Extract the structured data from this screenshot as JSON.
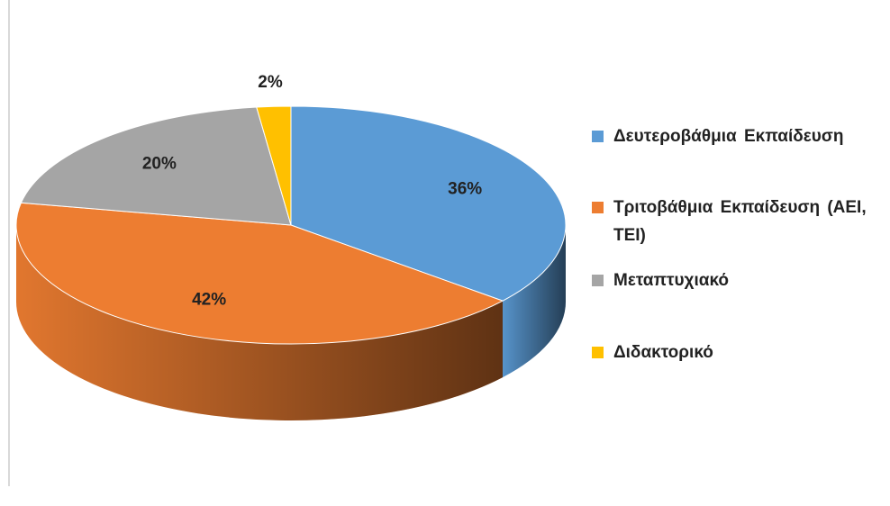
{
  "chart_data": {
    "type": "pie3d",
    "categories": [
      "Δευτεροβάθμια Εκπαίδευση",
      "Τριτοβάθμια Εκπαίδευση (ΑΕΙ, ΤΕΙ)",
      "Μεταπτυχιακό",
      "Διδακτορικό"
    ],
    "values": [
      36,
      42,
      20,
      2
    ],
    "value_labels": [
      "36%",
      "42%",
      "20%",
      "2%"
    ],
    "colors": [
      "#5b9bd5",
      "#ed7d31",
      "#a5a5a5",
      "#ffc000"
    ],
    "legend": "right"
  }
}
